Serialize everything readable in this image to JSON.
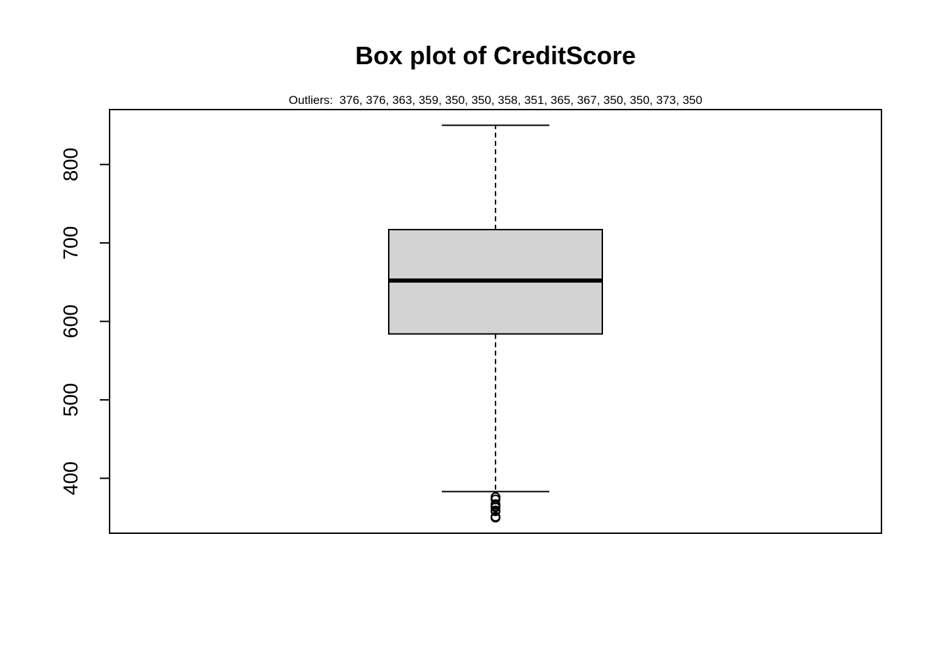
{
  "chart_data": {
    "type": "box",
    "title": "Box plot of CreditScore",
    "subtitle": "Outliers:  376, 376, 363, 359, 350, 350, 358, 351, 365, 367, 350, 350, 373, 350",
    "xlabel": "",
    "ylabel": "",
    "ylim": [
      330,
      870
    ],
    "yticks": [
      400,
      500,
      600,
      700,
      800
    ],
    "grid": false,
    "box": {
      "whisker_low": 383,
      "q1": 584,
      "median": 652,
      "q3": 717,
      "whisker_high": 850,
      "fill": "#d3d3d3"
    },
    "outliers": [
      376,
      376,
      363,
      359,
      350,
      350,
      358,
      351,
      365,
      367,
      350,
      350,
      373,
      350
    ]
  }
}
